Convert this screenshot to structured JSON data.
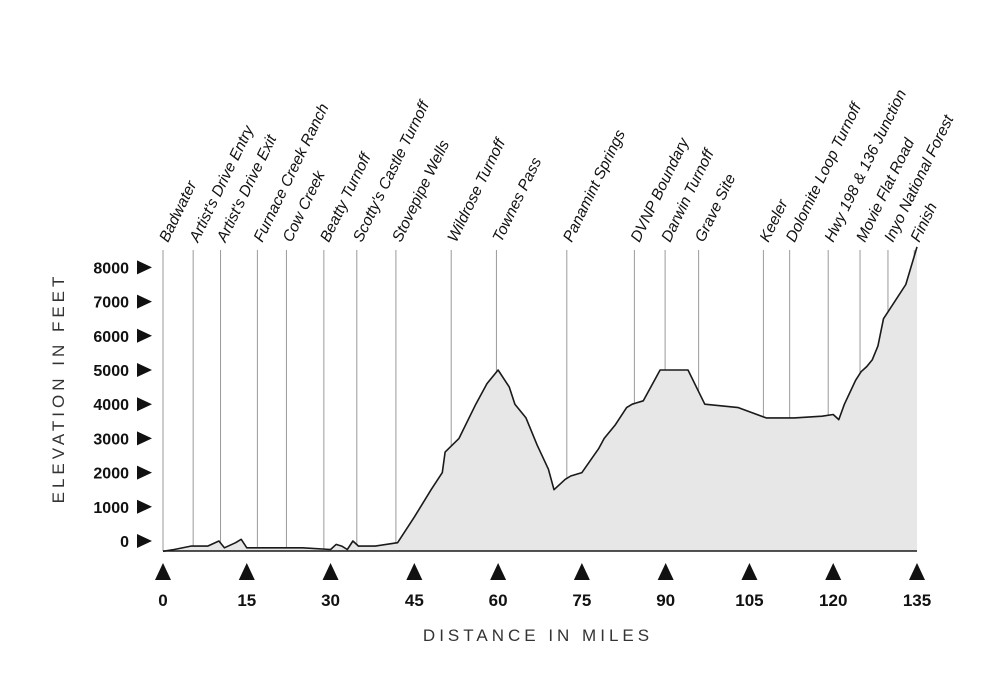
{
  "chart_data": {
    "type": "area",
    "xlabel": "DISTANCE IN MILES",
    "ylabel": "ELEVATION IN FEET",
    "xlim": [
      0,
      135
    ],
    "ylim": [
      0,
      8600
    ],
    "x_ticks": [
      0,
      15,
      30,
      45,
      60,
      75,
      90,
      105,
      120,
      135
    ],
    "y_ticks": [
      0,
      1000,
      2000,
      3000,
      4000,
      5000,
      6000,
      7000,
      8000
    ],
    "colors": {
      "fill": "#e7e7e7",
      "line": "#1a1a1a",
      "gridline": "#9a9a9a",
      "text": "#111111"
    },
    "profile": {
      "x": [
        0,
        2,
        5,
        8,
        10,
        11,
        13,
        14,
        15,
        17,
        20,
        25,
        30,
        31,
        32,
        33,
        34,
        35,
        38,
        42,
        45,
        48,
        50,
        50.5,
        53,
        56,
        58,
        60,
        62,
        63,
        65,
        67,
        69,
        70,
        72,
        73,
        75,
        78,
        79,
        81,
        83,
        84,
        86,
        89,
        92,
        94,
        97,
        103,
        108,
        113,
        118,
        120,
        121,
        122,
        124,
        125,
        126,
        127,
        128,
        129,
        131,
        133,
        135
      ],
      "y": [
        -300,
        -250,
        -150,
        -150,
        0,
        -200,
        -50,
        50,
        -200,
        -200,
        -200,
        -200,
        -250,
        -100,
        -150,
        -250,
        0,
        -150,
        -150,
        -50,
        700,
        1500,
        2000,
        2600,
        3000,
        4000,
        4600,
        5000,
        4500,
        4000,
        3600,
        2800,
        2100,
        1500,
        1800,
        1900,
        2000,
        2700,
        3000,
        3400,
        3900,
        4000,
        4100,
        5000,
        5000,
        5000,
        4000,
        3900,
        3600,
        3600,
        3650,
        3700,
        3550,
        4000,
        4700,
        4950,
        5100,
        5300,
        5700,
        6500,
        7000,
        7500,
        8600
      ]
    },
    "landmarks": [
      {
        "name": "Badwater",
        "mile": 0
      },
      {
        "name": "Artist's Drive Entry",
        "mile": 5.4
      },
      {
        "name": "Artist's Drive Exit",
        "mile": 10.3
      },
      {
        "name": "Furnace Creek Ranch",
        "mile": 16.9
      },
      {
        "name": "Cow Creek",
        "mile": 22.1
      },
      {
        "name": "Beatty Turnoff",
        "mile": 28.8
      },
      {
        "name": "Scotty's Castle Turnoff",
        "mile": 34.7
      },
      {
        "name": "Stovepipe Wells",
        "mile": 41.7
      },
      {
        "name": "Wildrose Turnoff",
        "mile": 51.6
      },
      {
        "name": "Townes Pass",
        "mile": 59.7
      },
      {
        "name": "Panamint Springs",
        "mile": 72.3
      },
      {
        "name": "DVNP Boundary",
        "mile": 84.4
      },
      {
        "name": "Darwin Turnoff",
        "mile": 89.9
      },
      {
        "name": "Grave Site",
        "mile": 95.9
      },
      {
        "name": "Keeler",
        "mile": 107.5
      },
      {
        "name": "Dolomite Loop Turnoff",
        "mile": 112.2
      },
      {
        "name": "Hwy 198 & 136 Junction",
        "mile": 119.1
      },
      {
        "name": "Movie Flat Road",
        "mile": 124.8
      },
      {
        "name": "Inyo National Forest",
        "mile": 129.8
      },
      {
        "name": "Finish",
        "mile": 134.5
      }
    ]
  }
}
